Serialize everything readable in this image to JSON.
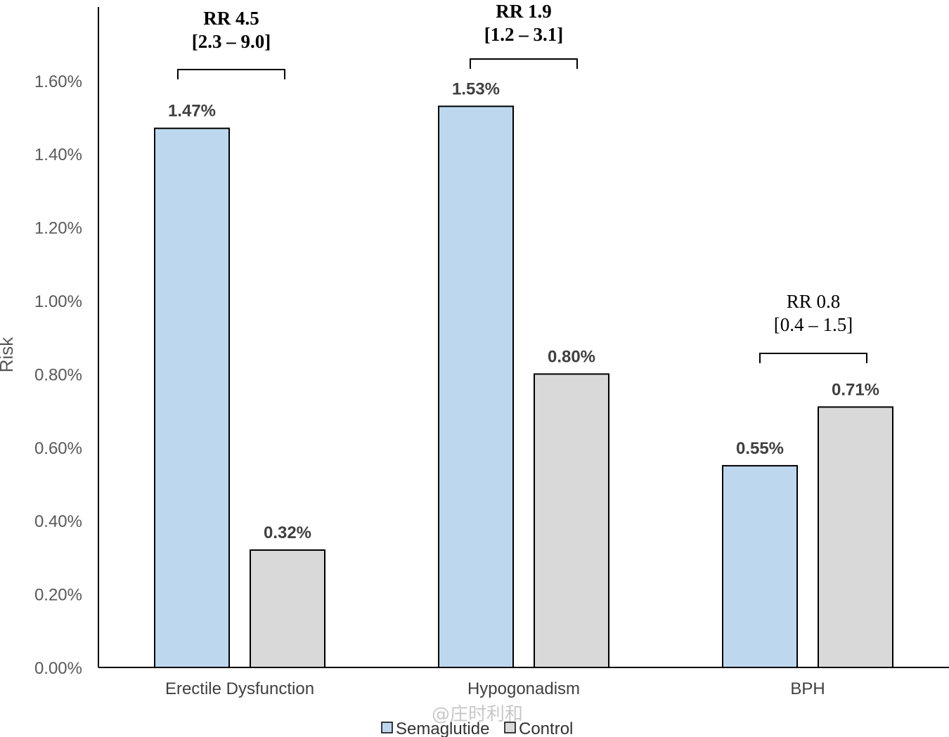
{
  "chart_data": {
    "type": "bar",
    "title": "",
    "xlabel": "",
    "ylabel": "Risk",
    "ylim": [
      0,
      0.018
    ],
    "y_ticks": [
      "0.00%",
      "0.20%",
      "0.40%",
      "0.60%",
      "0.80%",
      "1.00%",
      "1.20%",
      "1.40%",
      "1.60%"
    ],
    "y_tick_values": [
      0,
      0.2,
      0.4,
      0.6,
      0.8,
      1.0,
      1.2,
      1.4,
      1.6
    ],
    "categories": [
      "Erectile Dysfunction",
      "Hypogonadism",
      "BPH"
    ],
    "series": [
      {
        "name": "Semaglutide",
        "color": "#bdd7ee",
        "values": [
          1.47,
          1.53,
          0.55
        ],
        "labels": [
          "1.47%",
          "1.53%",
          "0.55%"
        ]
      },
      {
        "name": "Control",
        "color": "#d9d9d9",
        "values": [
          0.32,
          0.8,
          0.71
        ],
        "labels": [
          "0.32%",
          "0.80%",
          "0.71%"
        ]
      }
    ],
    "annotations": [
      {
        "line1": "RR 4.5",
        "line2": "[2.3 – 9.0]",
        "bold": true
      },
      {
        "line1": "RR 1.9",
        "line2": "[1.2 – 3.1]",
        "bold": true
      },
      {
        "line1": "RR 0.8",
        "line2": "[0.4 – 1.5]",
        "bold": false
      }
    ],
    "legend": {
      "position": "bottom",
      "entries": [
        "Semaglutide",
        "Control"
      ]
    },
    "grid": false
  },
  "watermark": "@庄时利和"
}
